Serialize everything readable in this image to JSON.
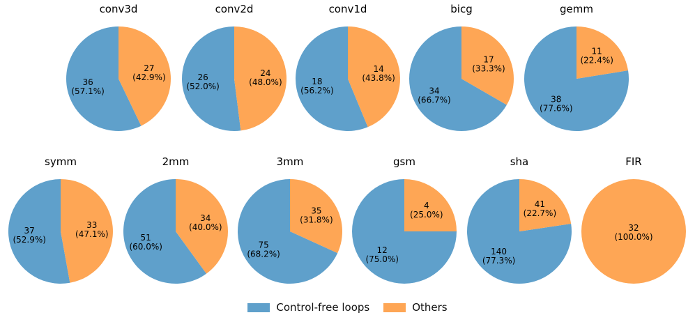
{
  "chart_data": {
    "type": "pie",
    "series_names": [
      "Control-free loops",
      "Others"
    ],
    "colors": [
      "#5fa0cb",
      "#fea655"
    ],
    "charts": [
      {
        "title": "conv3d",
        "values": [
          36,
          27
        ],
        "labels": [
          "36\n(57.1%)",
          "27\n(42.9%)"
        ]
      },
      {
        "title": "conv2d",
        "values": [
          26,
          24
        ],
        "labels": [
          "26\n(52.0%)",
          "24\n(48.0%)"
        ]
      },
      {
        "title": "conv1d",
        "values": [
          18,
          14
        ],
        "labels": [
          "18\n(56.2%)",
          "14\n(43.8%)"
        ]
      },
      {
        "title": "bicg",
        "values": [
          34,
          17
        ],
        "labels": [
          "34\n(66.7%)",
          "17\n(33.3%)"
        ]
      },
      {
        "title": "gemm",
        "values": [
          38,
          11
        ],
        "labels": [
          "38\n(77.6%)",
          "11\n(22.4%)"
        ]
      },
      {
        "title": "symm",
        "values": [
          37,
          33
        ],
        "labels": [
          "37\n(52.9%)",
          "33\n(47.1%)"
        ]
      },
      {
        "title": "2mm",
        "values": [
          51,
          34
        ],
        "labels": [
          "51\n(60.0%)",
          "34\n(40.0%)"
        ]
      },
      {
        "title": "3mm",
        "values": [
          75,
          35
        ],
        "labels": [
          "75\n(68.2%)",
          "35\n(31.8%)"
        ]
      },
      {
        "title": "gsm",
        "values": [
          12,
          4
        ],
        "labels": [
          "12\n(75.0%)",
          "4\n(25.0%)"
        ]
      },
      {
        "title": "sha",
        "values": [
          140,
          41
        ],
        "labels": [
          "140\n(77.3%)",
          "41\n(22.7%)"
        ]
      },
      {
        "title": "FIR",
        "values": [
          0,
          32
        ],
        "labels": [
          "",
          "32\n(100.0%)"
        ]
      }
    ]
  },
  "legend": {
    "control_free_label": "Control-free loops",
    "others_label": "Others"
  }
}
